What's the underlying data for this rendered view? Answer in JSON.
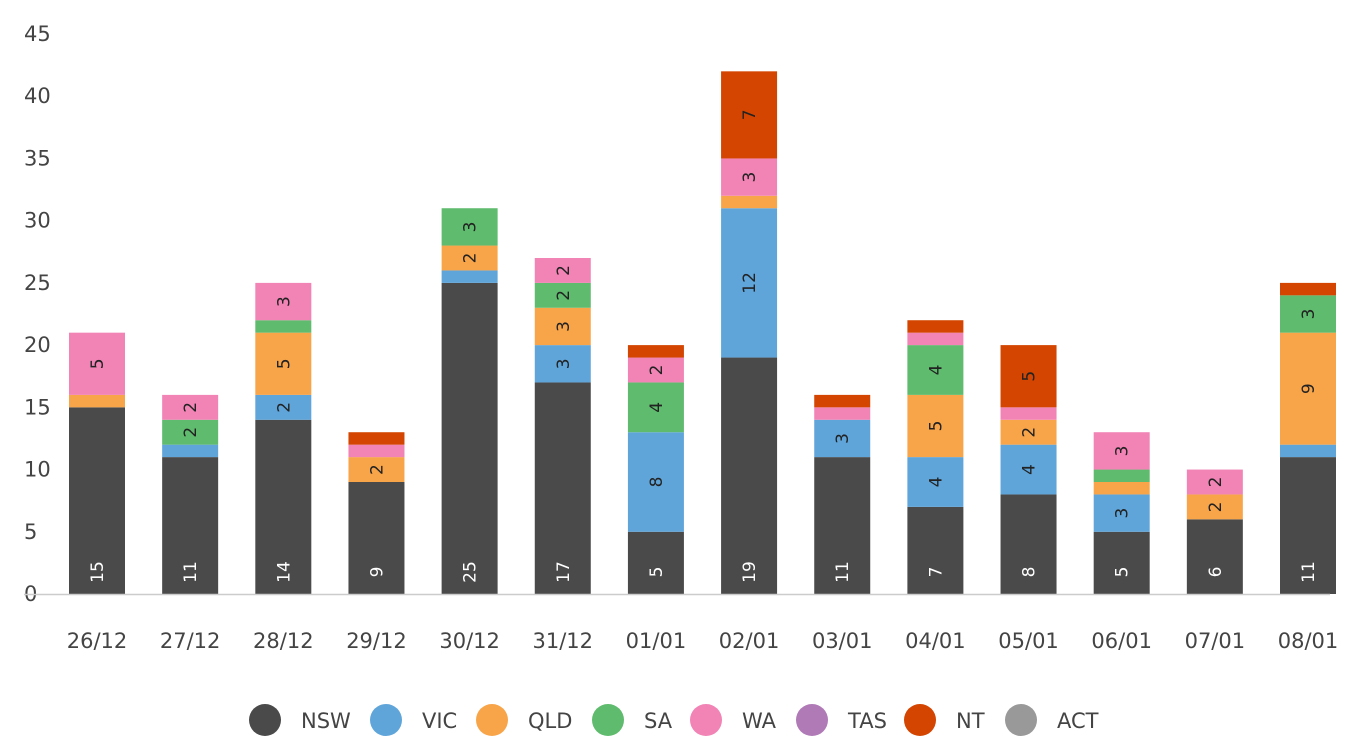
{
  "chart_data": {
    "type": "bar",
    "stacked": true,
    "categories": [
      "26/12",
      "27/12",
      "28/12",
      "29/12",
      "30/12",
      "31/12",
      "01/01",
      "02/01",
      "03/01",
      "04/01",
      "05/01",
      "06/01",
      "07/01",
      "08/01"
    ],
    "series": [
      {
        "name": "NSW",
        "color": "#4a4a4a",
        "values": [
          15,
          11,
          14,
          9,
          25,
          17,
          5,
          19,
          11,
          7,
          8,
          5,
          6,
          11
        ]
      },
      {
        "name": "VIC",
        "color": "#5fa5da",
        "values": [
          0,
          1,
          2,
          0,
          1,
          3,
          8,
          12,
          3,
          4,
          4,
          3,
          0,
          1
        ]
      },
      {
        "name": "QLD",
        "color": "#f8a54a",
        "values": [
          1,
          0,
          5,
          2,
          2,
          3,
          0,
          1,
          0,
          5,
          2,
          1,
          2,
          9
        ]
      },
      {
        "name": "SA",
        "color": "#5fbb6d",
        "values": [
          0,
          2,
          1,
          0,
          3,
          2,
          4,
          0,
          0,
          4,
          0,
          1,
          0,
          3
        ]
      },
      {
        "name": "WA",
        "color": "#f183b5",
        "values": [
          5,
          2,
          3,
          1,
          0,
          2,
          2,
          3,
          1,
          1,
          1,
          3,
          2,
          0
        ]
      },
      {
        "name": "TAS",
        "color": "#b07ab7",
        "values": [
          0,
          0,
          0,
          0,
          0,
          0,
          0,
          0,
          0,
          0,
          0,
          0,
          0,
          0
        ]
      },
      {
        "name": "NT",
        "color": "#d34500",
        "values": [
          0,
          0,
          0,
          1,
          0,
          0,
          1,
          7,
          1,
          1,
          5,
          0,
          0,
          1
        ]
      },
      {
        "name": "ACT",
        "color": "#999999",
        "values": [
          0,
          0,
          0,
          0,
          0,
          0,
          0,
          0,
          0,
          0,
          0,
          0,
          0,
          0
        ]
      }
    ],
    "ylim": [
      0,
      45
    ],
    "yticks": [
      0,
      5,
      10,
      15,
      20,
      25,
      30,
      35,
      40,
      45
    ],
    "legend_position": "bottom",
    "grid": false,
    "xlabel": "",
    "ylabel": ""
  }
}
